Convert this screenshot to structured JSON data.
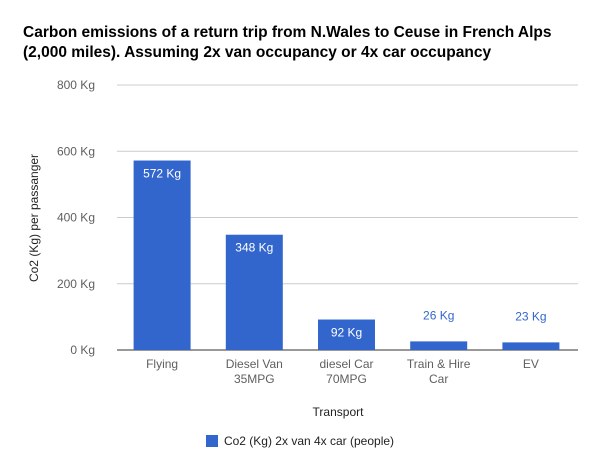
{
  "chart_data": {
    "type": "bar",
    "title_lines": [
      "Carbon emissions of a return trip from N.Wales to Ceuse in French Alps",
      "(2,000 miles). Assuming 2x van occupancy or 4x car occupancy"
    ],
    "xlabel": "Transport",
    "ylabel": "Co2 (Kg) per passanger",
    "ylim": [
      0,
      800
    ],
    "yticks": [
      0,
      200,
      400,
      600,
      800
    ],
    "ytick_labels": [
      "0 Kg",
      "200 Kg",
      "400 Kg",
      "600 Kg",
      "800 Kg"
    ],
    "categories": [
      [
        "Flying"
      ],
      [
        "Diesel Van",
        "35MPG"
      ],
      [
        "diesel Car",
        "70MPG"
      ],
      [
        "Train & Hire",
        "Car"
      ],
      [
        "EV"
      ]
    ],
    "series": [
      {
        "name": "Co2 (Kg) 2x van 4x car (people)",
        "values": [
          572,
          348,
          92,
          26,
          23
        ],
        "data_labels": [
          "572 Kg",
          "348 Kg",
          "92 Kg",
          "26 Kg",
          "23 Kg"
        ],
        "color": "#3366cc"
      }
    ],
    "grid": true,
    "legend_position": "bottom"
  }
}
